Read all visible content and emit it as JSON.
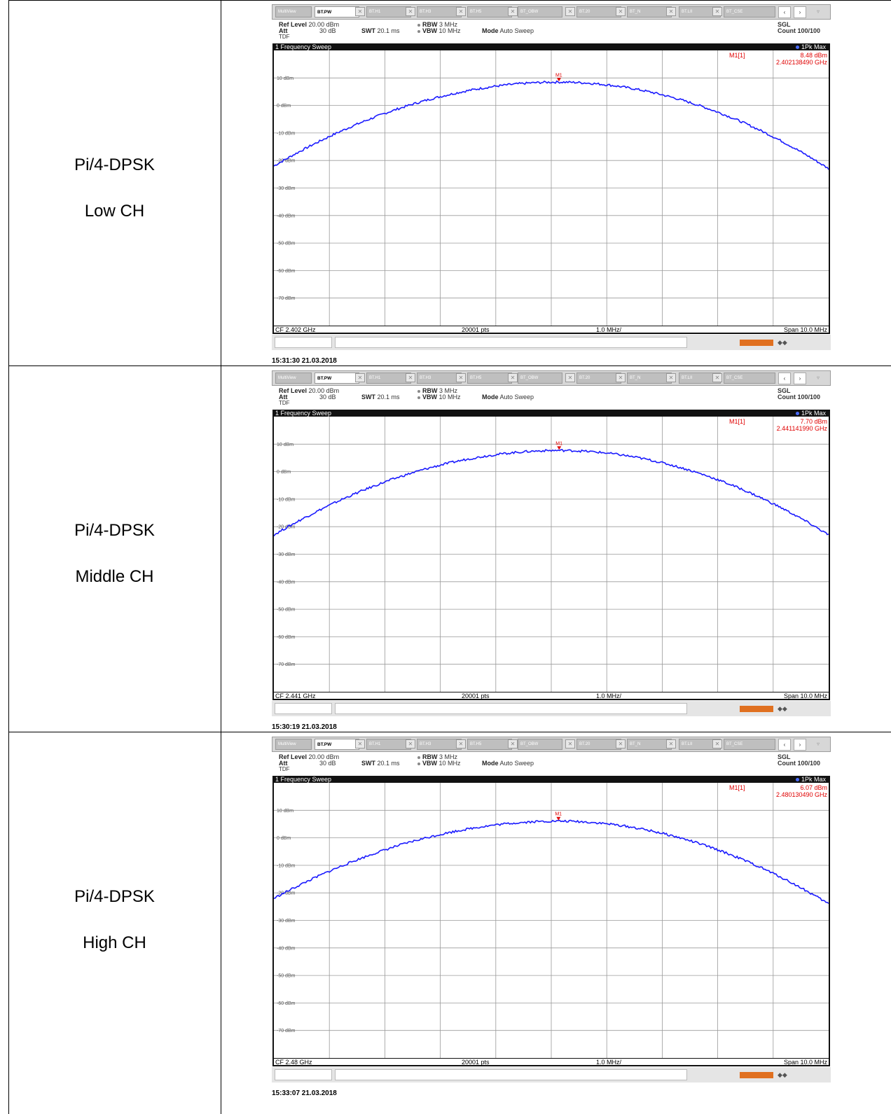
{
  "rows": [
    {
      "label_line1": "Pi/4-DPSK",
      "label_line2": "Low CH",
      "tabs": [
        "MultiView",
        "BT.PW",
        "BT.H1",
        "BT.H3",
        "BT.H5",
        "BT_OBW",
        "BT.20",
        "BT_N",
        "BT.LII",
        "BT_CSE"
      ],
      "ref_level_label": "Ref Level",
      "ref_level": "20.00 dBm",
      "att_label": "Att",
      "att": "30 dB",
      "tdf": "TDF",
      "swt_label": "SWT",
      "swt": "20.1 ms",
      "rbw_label": "RBW",
      "rbw": "3 MHz",
      "vbw_label": "VBW",
      "vbw": "10 MHz",
      "mode_label": "Mode",
      "mode": "Auto Sweep",
      "sgl": "SGL",
      "count": "Count 100/100",
      "sweep_title": "1 Frequency Sweep",
      "trace_label": "1Pk Max",
      "marker_name": "M1[1]",
      "marker_level": "8.48 dBm",
      "marker_freq": "2.402138490 GHz",
      "marker_tag": "M1",
      "cf": "CF 2.402 GHz",
      "pts": "20001 pts",
      "div": "1.0 MHz/",
      "span": "Span 10.0 MHz",
      "timestamp": "15:31:30  21.03.2018"
    },
    {
      "label_line1": "Pi/4-DPSK",
      "label_line2": "Middle CH",
      "tabs": [
        "MultiView",
        "BT.PW",
        "BT.H1",
        "BT.H3",
        "BT.H5",
        "BT_OBW",
        "BT.20",
        "BT_N",
        "BT.LII",
        "BT_CSE"
      ],
      "ref_level_label": "Ref Level",
      "ref_level": "20.00 dBm",
      "att_label": "Att",
      "att": "30 dB",
      "tdf": "TDF",
      "swt_label": "SWT",
      "swt": "20.1 ms",
      "rbw_label": "RBW",
      "rbw": "3 MHz",
      "vbw_label": "VBW",
      "vbw": "10 MHz",
      "mode_label": "Mode",
      "mode": "Auto Sweep",
      "sgl": "SGL",
      "count": "Count 100/100",
      "sweep_title": "1 Frequency Sweep",
      "trace_label": "1Pk Max",
      "marker_name": "M1[1]",
      "marker_level": "7.70 dBm",
      "marker_freq": "2.441141990 GHz",
      "marker_tag": "M1",
      "cf": "CF 2.441 GHz",
      "pts": "20001 pts",
      "div": "1.0 MHz/",
      "span": "Span 10.0 MHz",
      "timestamp": "15:30:19  21.03.2018"
    },
    {
      "label_line1": "Pi/4-DPSK",
      "label_line2": "High CH",
      "tabs": [
        "MultiView",
        "BT.PW",
        "BT.H1",
        "BT.H3",
        "BT.H5",
        "BT_OBW",
        "BT.20",
        "BT_N",
        "BT.LII",
        "BT_CSE"
      ],
      "ref_level_label": "Ref Level",
      "ref_level": "20.00 dBm",
      "att_label": "Att",
      "att": "30 dB",
      "tdf": "TDF",
      "swt_label": "SWT",
      "swt": "20.1 ms",
      "rbw_label": "RBW",
      "rbw": "3 MHz",
      "vbw_label": "VBW",
      "vbw": "10 MHz",
      "mode_label": "Mode",
      "mode": "Auto Sweep",
      "sgl": "SGL",
      "count": "Count 100/100",
      "sweep_title": "1 Frequency Sweep",
      "trace_label": "1Pk Max",
      "marker_name": "M1[1]",
      "marker_level": "6.07 dBm",
      "marker_freq": "2.480130490 GHz",
      "marker_tag": "M1",
      "cf": "CF 2.48 GHz",
      "pts": "20001 pts",
      "div": "1.0 MHz/",
      "span": "Span 10.0 MHz",
      "timestamp": "15:33:07  21.03.2018"
    }
  ],
  "y_tick_labels": [
    "10 dBm",
    "0 dBm",
    "-10 dBm",
    "-20 dBm",
    "-30 dBm",
    "-40 dBm",
    "-50 dBm",
    "-60 dBm",
    "-70 dBm"
  ],
  "trace_color": "#1a1aff",
  "marker_color": "#e00000",
  "chart_data": [
    {
      "type": "line",
      "ylim": [
        -80,
        20
      ],
      "x_range_ghz": [
        2.397,
        2.407
      ],
      "peak": {
        "x": 2.40213849,
        "y": 8.48
      },
      "series": [
        {
          "x": [
            2.397,
            2.402,
            2.407
          ],
          "y": [
            -22,
            8.48,
            -23
          ]
        }
      ]
    },
    {
      "type": "line",
      "ylim": [
        -80,
        20
      ],
      "x_range_ghz": [
        2.436,
        2.446
      ],
      "peak": {
        "x": 2.44114199,
        "y": 7.7
      },
      "series": [
        {
          "x": [
            2.436,
            2.441,
            2.446
          ],
          "y": [
            -23,
            7.7,
            -23
          ]
        }
      ]
    },
    {
      "type": "line",
      "ylim": [
        -80,
        20
      ],
      "x_range_ghz": [
        2.475,
        2.485
      ],
      "peak": {
        "x": 2.48013049,
        "y": 6.07
      },
      "series": [
        {
          "x": [
            2.475,
            2.48,
            2.485
          ],
          "y": [
            -22,
            6.07,
            -24
          ]
        }
      ]
    }
  ]
}
